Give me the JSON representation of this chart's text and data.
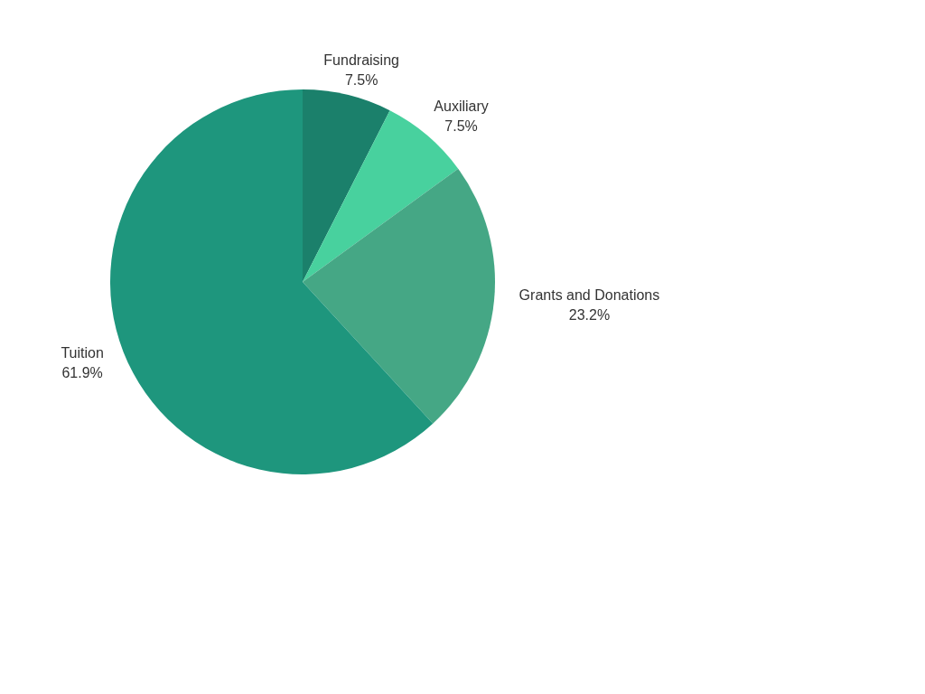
{
  "chart_data": {
    "type": "pie",
    "categories": [
      "Fundraising",
      "Auxiliary",
      "Grants and Donations",
      "Tuition"
    ],
    "values": [
      7.5,
      7.5,
      23.2,
      61.9
    ],
    "colors": [
      "#1b806b",
      "#48d19e",
      "#45a785",
      "#1e967d"
    ],
    "value_labels": [
      "7.5%",
      "7.5%",
      "23.2%",
      "61.9%"
    ]
  }
}
